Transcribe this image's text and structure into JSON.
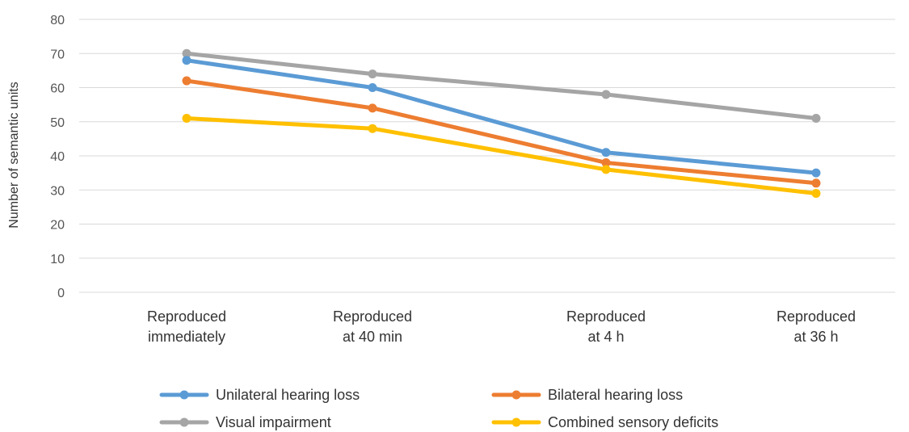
{
  "chart_data": {
    "type": "line",
    "ylabel": "Number of semantic units",
    "ylim": [
      0,
      80
    ],
    "yticks": [
      0,
      10,
      20,
      30,
      40,
      50,
      60,
      70,
      80
    ],
    "grid": true,
    "legend_position": "bottom",
    "categories": [
      [
        "Reproduced",
        "immediately"
      ],
      [
        "Reproduced",
        "at 40 min"
      ],
      [
        "Reproduced",
        "at 4 h"
      ],
      [
        "Reproduced",
        "at 36 h"
      ]
    ],
    "series": [
      {
        "name": "Visual impairment",
        "color": "#a5a5a5",
        "values": [
          70,
          64,
          58,
          51
        ]
      },
      {
        "name": "Unilateral hearing loss",
        "color": "#5b9bd5",
        "values": [
          68,
          60,
          41,
          35
        ]
      },
      {
        "name": "Bilateral hearing loss",
        "color": "#ed7d31",
        "values": [
          62,
          54,
          38,
          32
        ]
      },
      {
        "name": "Combined sensory deficits",
        "color": "#ffc000",
        "values": [
          51,
          48,
          36,
          29
        ]
      }
    ],
    "legend_order": [
      "Unilateral hearing loss",
      "Bilateral hearing loss",
      "Visual impairment",
      "Combined sensory deficits"
    ]
  }
}
